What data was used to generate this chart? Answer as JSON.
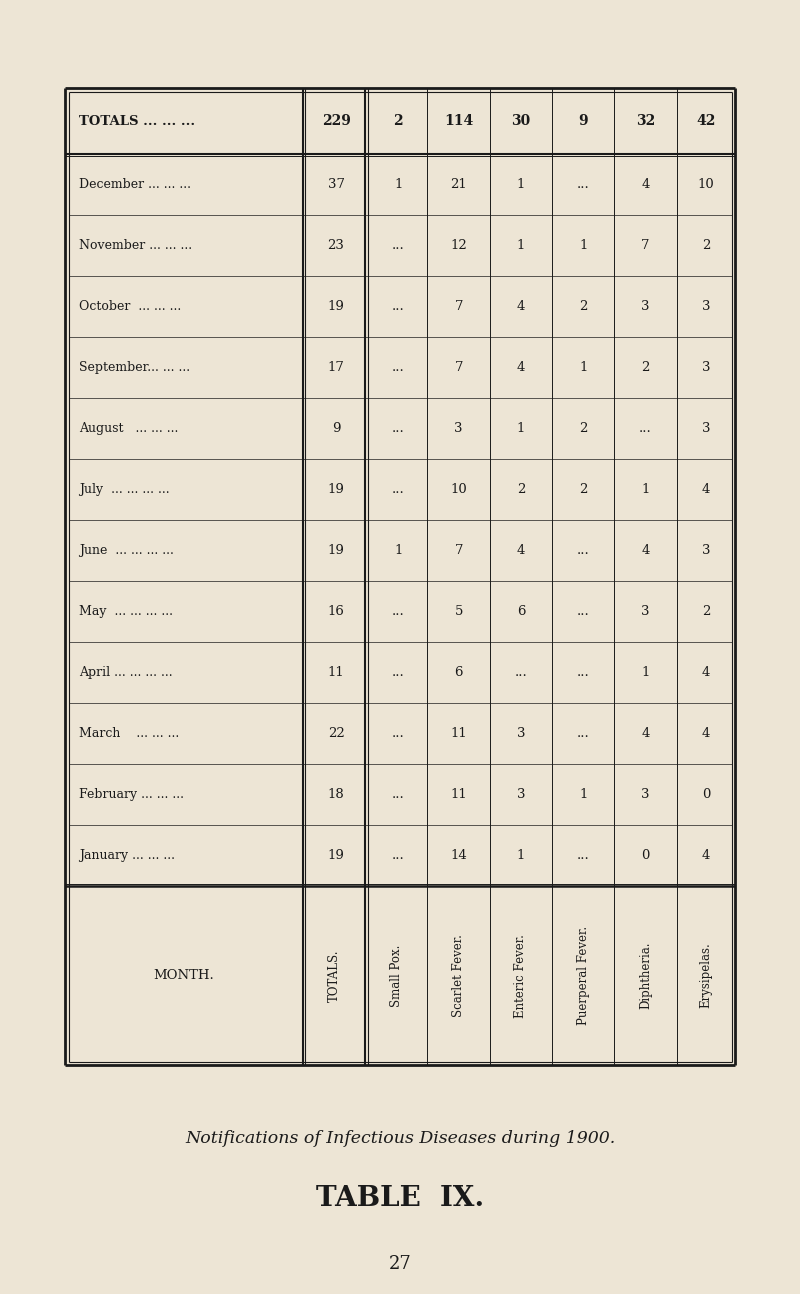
{
  "page_number": "27",
  "title": "TABLE  IX.",
  "subtitle": "Notifications of Infectious Diseases during 1900.",
  "bg_color": "#ede5d5",
  "text_color": "#1a1a1a",
  "col_headers": [
    "MONTH.",
    "TOTALS.",
    "Small Pox.",
    "Scarlet Fever.",
    "Enteric Fever.",
    "Puerperal Fever.",
    "Diphtheria.",
    "Erysipelas."
  ],
  "rows": [
    [
      "January",
      "...",
      "...",
      "...",
      "19",
      "...",
      "14",
      "1",
      "...",
      "0",
      "4"
    ],
    [
      "February",
      "...",
      "...",
      "...",
      "18",
      "...",
      "11",
      "3",
      "1",
      "3",
      "0"
    ],
    [
      "March",
      "...",
      "...",
      "...",
      "22",
      "...",
      "11",
      "3",
      "...",
      "4",
      "4"
    ],
    [
      "April",
      "...",
      "...",
      "...",
      "...",
      "11",
      "...",
      "6",
      "...",
      "...",
      "1",
      "4"
    ],
    [
      "May",
      "...",
      "...",
      "...",
      "...",
      "16",
      "...",
      "5",
      "6",
      "...",
      "3",
      "2"
    ],
    [
      "June",
      "...",
      "...",
      "...",
      "...",
      "19",
      "1",
      "7",
      "4",
      "...",
      "4",
      "3"
    ],
    [
      "July",
      "...",
      "...",
      "...",
      "...",
      "19",
      "...",
      "10",
      "2",
      "2",
      "1",
      "4"
    ],
    [
      "August",
      "...",
      "...",
      "...",
      "9",
      "...",
      "3",
      "1",
      "2",
      "...",
      "3"
    ],
    [
      "September...",
      "...",
      "...",
      "17",
      "...",
      "7",
      "4",
      "1",
      "2",
      "3"
    ],
    [
      "October",
      "...",
      "...",
      "...",
      "19",
      "...",
      "7",
      "4",
      "2",
      "3",
      "3"
    ],
    [
      "November",
      "...",
      "...",
      "...",
      "23",
      "...",
      "12",
      "1",
      "1",
      "7",
      "2"
    ],
    [
      "December",
      "...",
      "...",
      "...",
      "37",
      "1",
      "21",
      "1",
      "...",
      "4",
      "10"
    ]
  ],
  "row_data": [
    [
      "January ... ... ...",
      "19",
      "...",
      "14",
      "1",
      "...",
      "0",
      "4"
    ],
    [
      "February ... ... ...",
      "18",
      "...",
      "11",
      "3",
      "1",
      "3",
      "0"
    ],
    [
      "March    ... ... ...",
      "22",
      "...",
      "11",
      "3",
      "...",
      "4",
      "4"
    ],
    [
      "April ... ... ... ...",
      "11",
      "...",
      "6",
      "...",
      "...",
      "1",
      "4"
    ],
    [
      "May  ... ... ... ...",
      "16",
      "...",
      "5",
      "6",
      "...",
      "3",
      "2"
    ],
    [
      "June  ... ... ... ...",
      "19",
      "1",
      "7",
      "4",
      "...",
      "4",
      "3"
    ],
    [
      "July  ... ... ... ...",
      "19",
      "...",
      "10",
      "2",
      "2",
      "1",
      "4"
    ],
    [
      "August   ... ... ...",
      "9",
      "...",
      "3",
      "1",
      "2",
      "...",
      "3"
    ],
    [
      "September... ... ...",
      "17",
      "...",
      "7",
      "4",
      "1",
      "2",
      "3"
    ],
    [
      "October  ... ... ...",
      "19",
      "...",
      "7",
      "4",
      "2",
      "3",
      "3"
    ],
    [
      "November ... ... ...",
      "23",
      "...",
      "12",
      "1",
      "1",
      "7",
      "2"
    ],
    [
      "December ... ... ...",
      "37",
      "1",
      "21",
      "1",
      "...",
      "4",
      "10"
    ]
  ],
  "totals_row": [
    "TOTALS ... ... ...",
    "229",
    "2",
    "114",
    "30",
    "9",
    "32",
    "42"
  ]
}
